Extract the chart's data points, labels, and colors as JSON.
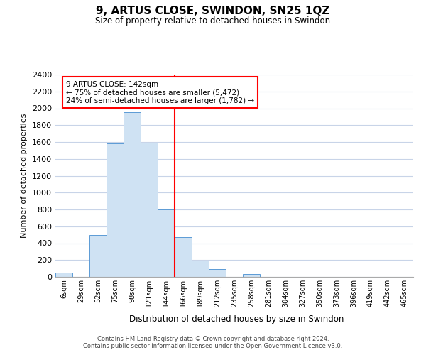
{
  "title": "9, ARTUS CLOSE, SWINDON, SN25 1QZ",
  "subtitle": "Size of property relative to detached houses in Swindon",
  "xlabel": "Distribution of detached houses by size in Swindon",
  "ylabel": "Number of detached properties",
  "bar_labels": [
    "6sqm",
    "29sqm",
    "52sqm",
    "75sqm",
    "98sqm",
    "121sqm",
    "144sqm",
    "166sqm",
    "189sqm",
    "212sqm",
    "235sqm",
    "258sqm",
    "281sqm",
    "304sqm",
    "327sqm",
    "350sqm",
    "373sqm",
    "396sqm",
    "419sqm",
    "442sqm",
    "465sqm"
  ],
  "bar_heights": [
    50,
    0,
    500,
    1580,
    1950,
    1590,
    800,
    470,
    190,
    95,
    0,
    30,
    0,
    0,
    0,
    0,
    0,
    0,
    0,
    0,
    0
  ],
  "bar_color": "#cfe2f3",
  "bar_edge_color": "#5b9bd5",
  "vline_color": "red",
  "annotation_text": "9 ARTUS CLOSE: 142sqm\n← 75% of detached houses are smaller (5,472)\n24% of semi-detached houses are larger (1,782) →",
  "annotation_box_color": "white",
  "annotation_box_edge": "red",
  "ylim": [
    0,
    2400
  ],
  "yticks": [
    0,
    200,
    400,
    600,
    800,
    1000,
    1200,
    1400,
    1600,
    1800,
    2000,
    2200,
    2400
  ],
  "footer_line1": "Contains HM Land Registry data © Crown copyright and database right 2024.",
  "footer_line2": "Contains public sector information licensed under the Open Government Licence v3.0.",
  "background_color": "#ffffff",
  "grid_color": "#c8d4e8"
}
